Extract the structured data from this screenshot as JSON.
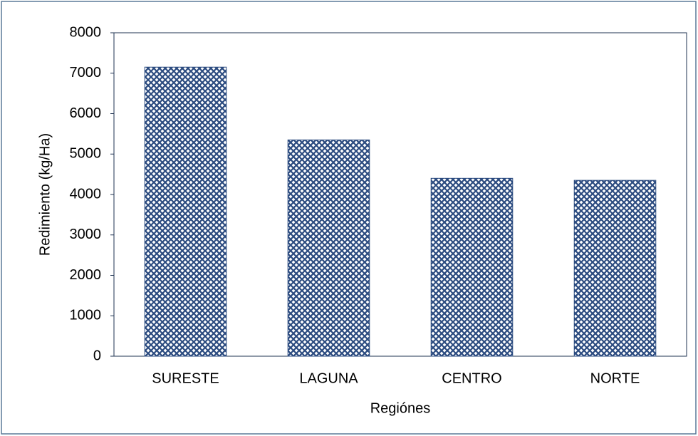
{
  "chart_data": {
    "type": "bar",
    "x_label": "Regiónes",
    "y_label": "Redimiento (kg/Ha)",
    "categories": [
      "SURESTE",
      "LAGUNA",
      "CENTRO",
      "NORTE"
    ],
    "values": [
      7150,
      5350,
      4400,
      4350
    ],
    "color": "#2a4a7f",
    "ylim": [
      0,
      8000
    ],
    "yticks": [
      0,
      1000,
      2000,
      3000,
      4000,
      5000,
      6000,
      7000,
      8000
    ],
    "grid": false
  }
}
